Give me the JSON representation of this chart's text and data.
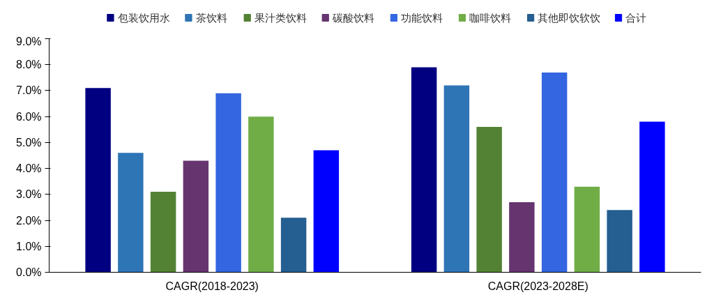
{
  "chart_data": {
    "type": "bar",
    "categories": [
      "CAGR(2018-2023)",
      "CAGR(2023-2028E)"
    ],
    "series": [
      {
        "name": "包装饮用水",
        "color": "#000080",
        "values": [
          7.1,
          7.9
        ]
      },
      {
        "name": "茶饮料",
        "color": "#2e75b6",
        "values": [
          4.6,
          7.2
        ]
      },
      {
        "name": "果汁类饮料",
        "color": "#548235",
        "values": [
          3.1,
          5.6
        ]
      },
      {
        "name": "碳酸饮料",
        "color": "#663570",
        "values": [
          4.3,
          2.7
        ]
      },
      {
        "name": "功能饮料",
        "color": "#3366e0",
        "values": [
          6.9,
          7.7
        ]
      },
      {
        "name": "咖啡饮料",
        "color": "#70ad47",
        "values": [
          6.0,
          3.3
        ]
      },
      {
        "name": "其他即饮软饮",
        "color": "#255e91",
        "values": [
          2.1,
          2.4
        ]
      },
      {
        "name": "合计",
        "color": "#0000ff",
        "values": [
          4.7,
          5.8
        ]
      }
    ],
    "ylim": [
      0,
      9
    ],
    "yticks": [
      {
        "value": 0,
        "label": "0.0%"
      },
      {
        "value": 1,
        "label": "1.0%"
      },
      {
        "value": 2,
        "label": "2.0%"
      },
      {
        "value": 3,
        "label": "3.0%"
      },
      {
        "value": 4,
        "label": "4.0%"
      },
      {
        "value": 5,
        "label": "5.0%"
      },
      {
        "value": 6,
        "label": "6.0%"
      },
      {
        "value": 7,
        "label": "7.0%"
      },
      {
        "value": 8,
        "label": "8.0%"
      },
      {
        "value": 9,
        "label": "9.0%"
      }
    ],
    "grid": false,
    "legend": "top"
  }
}
